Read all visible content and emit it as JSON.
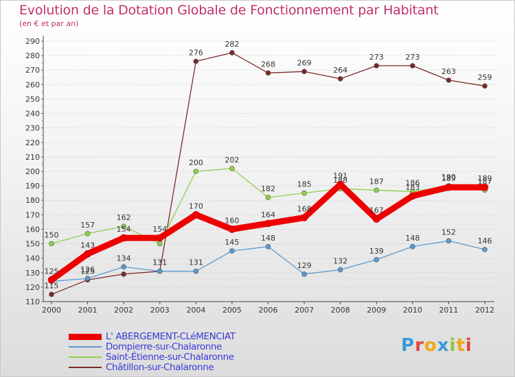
{
  "page": {
    "title": "Evolution de la Dotation Globale de Fonctionnement par Habitant",
    "subtitle": "(en € et par an)"
  },
  "logo": {
    "text": "Proxiti",
    "colors": [
      "#3a9ad9",
      "#e0463b",
      "#f0a818",
      "#3a9ad9",
      "#8cc63f",
      "#f0a818",
      "#e0463b"
    ]
  },
  "chart_data": {
    "type": "line",
    "title": "Evolution de la Dotation Globale de Fonctionnement par Habitant",
    "subtitle": "(en € et par an)",
    "xlabel": "",
    "ylabel": "",
    "ylim": [
      110,
      290
    ],
    "ytick_step": 10,
    "grid": "horizontal-dotted",
    "legend_position": "bottom-left",
    "x": [
      "2000",
      "2001",
      "2002",
      "2003",
      "2004",
      "2005",
      "2006",
      "2007",
      "2008",
      "2009",
      "2010",
      "2011",
      "2012"
    ],
    "series": [
      {
        "name": "Châtillon-sur-Chalaronne",
        "color": "#7a2a2a",
        "style": "thin",
        "values": [
          115,
          125,
          129,
          131,
          276,
          282,
          268,
          269,
          264,
          273,
          273,
          263,
          259
        ],
        "labels": [
          "115",
          "125",
          "",
          "131",
          "276",
          "282",
          "268",
          "269",
          "264",
          "273",
          "273",
          "263",
          "259"
        ]
      },
      {
        "name": "Dompierre-sur-Chalaronne",
        "color": "#5a9ad0",
        "style": "thin",
        "values": [
          124,
          126,
          134,
          131,
          131,
          145,
          148,
          129,
          132,
          139,
          148,
          152,
          146
        ],
        "labels": [
          "",
          "126",
          "134",
          "131",
          "131",
          "145",
          "148",
          "129",
          "132",
          "139",
          "148",
          "152",
          "146"
        ]
      },
      {
        "name": "Saint-Étienne-sur-Chalaronne",
        "color": "#8ed04a",
        "style": "thin",
        "values": [
          150,
          157,
          162,
          150,
          200,
          202,
          182,
          185,
          188,
          187,
          186,
          190,
          187
        ],
        "labels": [
          "150",
          "157",
          "162",
          "",
          "200",
          "202",
          "182",
          "185",
          "188",
          "187",
          "186",
          "190",
          "187"
        ]
      },
      {
        "name": "L' ABERGEMENT-CLéMENCIAT",
        "color": "#ee0000",
        "style": "thick",
        "values": [
          125,
          143,
          154,
          154,
          170,
          160,
          164,
          168,
          191,
          167,
          183,
          189,
          189
        ],
        "labels": [
          "125",
          "143",
          "154",
          "154",
          "170",
          "160",
          "164",
          "168",
          "191",
          "167",
          "183",
          "189",
          "189"
        ]
      }
    ],
    "legend_order": [
      "L' ABERGEMENT-CLéMENCIAT",
      "Dompierre-sur-Chalaronne",
      "Saint-Étienne-sur-Chalaronne",
      "Châtillon-sur-Chalaronne"
    ]
  }
}
